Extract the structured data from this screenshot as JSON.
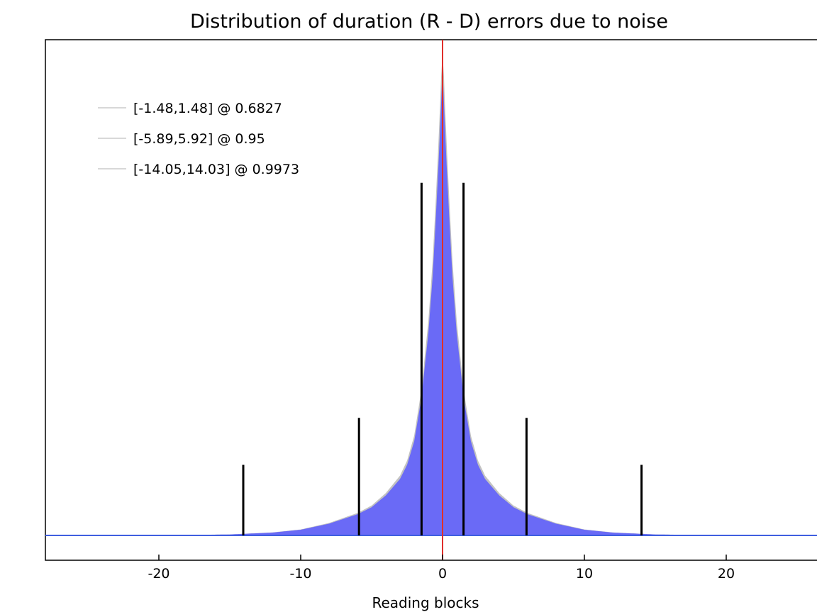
{
  "chart_data": {
    "type": "area",
    "title": "Distribution of duration (R - D) errors due to noise",
    "xlabel": "Reading blocks",
    "ylabel": "",
    "xlim": [
      -28,
      27
    ],
    "x_ticks": [
      -20,
      -10,
      0,
      10,
      20
    ],
    "x_tick_labels": [
      "-20",
      "-10",
      "0",
      "10",
      "20"
    ],
    "y_ticks_shown": false,
    "grid": false,
    "legend_position": "top-left",
    "legend": [
      {
        "label": "[-1.48,1.48] @ 0.6827",
        "lower": -1.48,
        "upper": 1.48,
        "coverage": 0.6827,
        "marker_height": 0.75
      },
      {
        "label": "[-5.89,5.92] @ 0.95",
        "lower": -5.89,
        "upper": 5.92,
        "coverage": 0.95,
        "marker_height": 0.25
      },
      {
        "label": "[-14.05,14.03] @ 0.9973",
        "lower": -14.05,
        "upper": 14.03,
        "coverage": 0.9973,
        "marker_height": 0.15
      }
    ],
    "reference_line": {
      "x": 0
    },
    "density": {
      "x": [
        -28,
        -20,
        -15,
        -12,
        -10,
        -8,
        -6,
        -5,
        -4,
        -3,
        -2.5,
        -2,
        -1.5,
        -1,
        -0.7,
        -0.5,
        -0.3,
        -0.15,
        0,
        0.15,
        0.3,
        0.5,
        0.7,
        1,
        1.5,
        2,
        2.5,
        3,
        4,
        5,
        6,
        8,
        10,
        12,
        15,
        20,
        27
      ],
      "y": [
        0,
        0,
        0.002,
        0.006,
        0.012,
        0.025,
        0.045,
        0.06,
        0.085,
        0.12,
        0.15,
        0.2,
        0.29,
        0.43,
        0.55,
        0.66,
        0.78,
        0.88,
        1.0,
        0.88,
        0.78,
        0.66,
        0.55,
        0.43,
        0.29,
        0.2,
        0.15,
        0.12,
        0.085,
        0.06,
        0.045,
        0.025,
        0.012,
        0.006,
        0.002,
        0,
        0
      ]
    },
    "colors": {
      "fill": "#6a6af6",
      "outline": "#c2c2c2",
      "baseline": "#3f5fe0",
      "reference_line": "#e0302a",
      "markers": "#000000",
      "legend_line": "#cccccc"
    }
  }
}
